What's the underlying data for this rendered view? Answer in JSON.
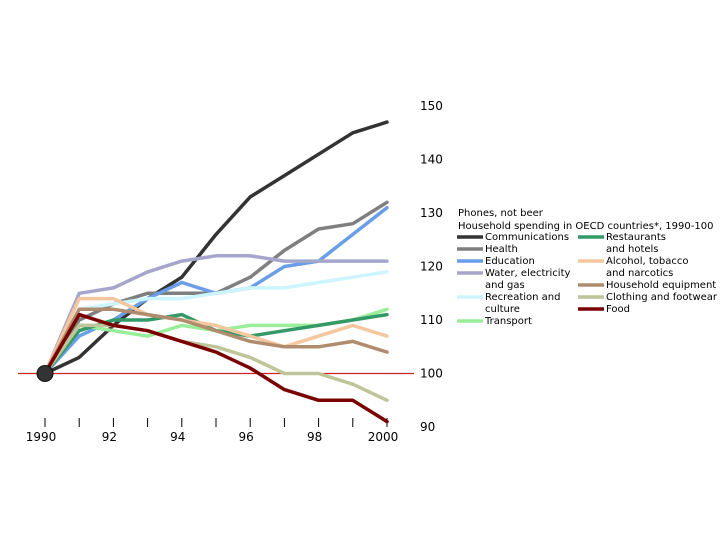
{
  "chart_data": {
    "type": "line",
    "title": "Phones, not beer",
    "subtitle": "Household spending in OECD countries*, 1990-100",
    "x": [
      1990,
      1991,
      1992,
      1993,
      1994,
      1995,
      1996,
      1997,
      1998,
      1999,
      2000
    ],
    "x_ticks": [
      1990,
      1992,
      1994,
      1996,
      1998,
      2000
    ],
    "x_tick_labels": [
      "1990",
      "92",
      "94",
      "96",
      "98",
      "2000"
    ],
    "ylim": [
      90,
      150
    ],
    "y_ticks": [
      90,
      100,
      110,
      120,
      130,
      140,
      150
    ],
    "y_tick_labels": [
      "90",
      "100",
      "110",
      "120",
      "130",
      "140",
      "150"
    ],
    "baseline": 100,
    "grid": false,
    "legend_position": "right",
    "series": [
      {
        "name": "Communications",
        "label_lines": [
          "Communications"
        ],
        "color": "#333333",
        "values": [
          100,
          103,
          109,
          114,
          118,
          126,
          133,
          137,
          141,
          145,
          147
        ]
      },
      {
        "name": "Health",
        "label_lines": [
          "Health"
        ],
        "color": "#7f7f7f",
        "values": [
          100,
          110,
          113,
          115,
          115,
          115,
          118,
          123,
          127,
          128,
          132
        ]
      },
      {
        "name": "Education",
        "label_lines": [
          "Education"
        ],
        "color": "#6a9ee6",
        "values": [
          100,
          107,
          110,
          114,
          117,
          115,
          116,
          120,
          121,
          126,
          131
        ]
      },
      {
        "name": "Water, electricity and gas",
        "label_lines": [
          "Water, electricity",
          "and gas"
        ],
        "color": "#a6a6cc",
        "values": [
          100,
          115,
          116,
          119,
          121,
          122,
          122,
          121,
          121,
          121,
          121
        ]
      },
      {
        "name": "Recreation and culture",
        "label_lines": [
          "Recreation and",
          "culture"
        ],
        "color": "#ccf5ff",
        "values": [
          100,
          112,
          113,
          114,
          114,
          115,
          116,
          116,
          117,
          118,
          119
        ]
      },
      {
        "name": "Transport",
        "label_lines": [
          "Transport"
        ],
        "color": "#99ee99",
        "values": [
          100,
          109,
          108,
          107,
          109,
          108,
          109,
          109,
          109,
          110,
          112
        ]
      },
      {
        "name": "Restaurants and hotels",
        "label_lines": [
          "Restaurants",
          "and hotels"
        ],
        "color": "#339966",
        "values": [
          100,
          108,
          110,
          110,
          111,
          108,
          107,
          108,
          109,
          110,
          111
        ]
      },
      {
        "name": "Alcohol, tobacco and narcotics",
        "label_lines": [
          "Alcohol, tobacco",
          "and narcotics"
        ],
        "color": "#f5c79f",
        "values": [
          100,
          114,
          114,
          111,
          110,
          109,
          107,
          105,
          107,
          109,
          107
        ]
      },
      {
        "name": "Household equipment",
        "label_lines": [
          "Household equipment"
        ],
        "color": "#b08c6e",
        "values": [
          100,
          112,
          112,
          111,
          110,
          108,
          106,
          105,
          105,
          106,
          104
        ]
      },
      {
        "name": "Clothing and footwear",
        "label_lines": [
          "Clothing and footwear"
        ],
        "color": "#bfc499",
        "values": [
          100,
          109,
          109,
          108,
          106,
          105,
          103,
          100,
          100,
          98,
          95
        ]
      },
      {
        "name": "Food",
        "label_lines": [
          "Food"
        ],
        "color": "#7a0000",
        "values": [
          100,
          111,
          109,
          108,
          106,
          104,
          101,
          97,
          95,
          95,
          91
        ]
      }
    ]
  }
}
